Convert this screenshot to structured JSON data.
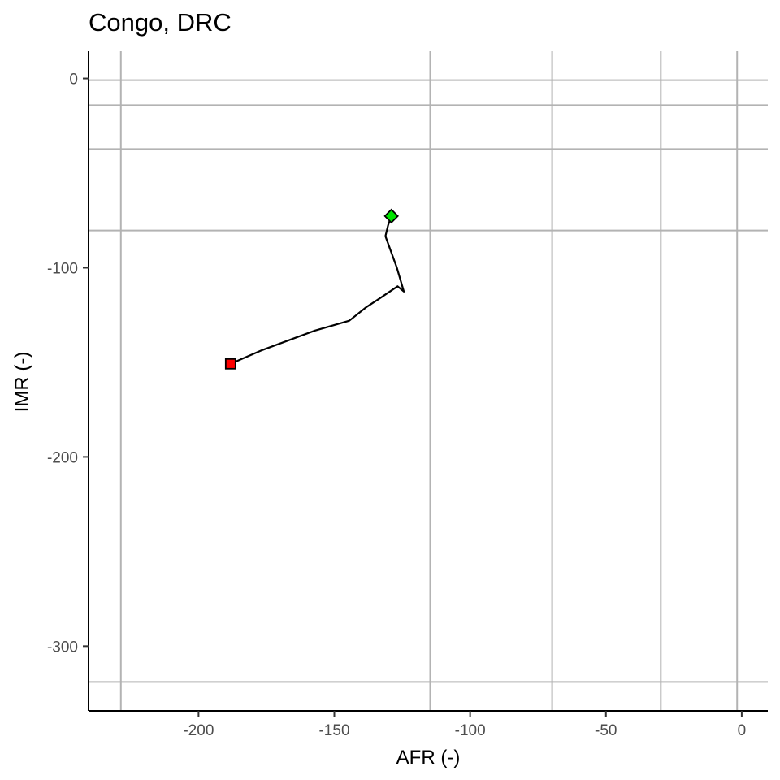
{
  "chart_data": {
    "type": "line",
    "title": "Congo, DRC",
    "xlabel": "AFR (-)",
    "ylabel": "IMR (-)",
    "xlim": [
      -240.5,
      9.6
    ],
    "ylim": [
      -334.2,
      14.4
    ],
    "x_ticks": [
      -200,
      -150,
      -100,
      -50,
      0
    ],
    "x_tick_labels": [
      "-200",
      "-150",
      "-100",
      "-50",
      "0"
    ],
    "y_ticks": [
      0,
      -100,
      -200,
      -300
    ],
    "y_tick_labels": [
      "0",
      "-100",
      "-200",
      "-300"
    ],
    "grid_x": [
      -228.6,
      -114.7,
      -69.8,
      -29.8,
      -1.7
    ],
    "grid_y": [
      -0.9,
      -14.1,
      -37.3,
      -80.3,
      -318.9
    ],
    "series": [
      {
        "color": "#000000",
        "x": [
          -188.2,
          -176.5,
          -157.1,
          -144.5,
          -138.2,
          -133.4,
          -126.7,
          -124.4,
          -127.0,
          -131.2,
          -130.2,
          -129.0
        ],
        "y": [
          -150.8,
          -143.5,
          -133.2,
          -128.0,
          -120.8,
          -116.3,
          -109.8,
          -112.6,
          -99.9,
          -83.3,
          -77.5,
          -72.7
        ]
      }
    ],
    "markers": [
      {
        "shape": "square",
        "color": "#ff0000",
        "x": -188.2,
        "y": -150.8
      },
      {
        "shape": "diamond",
        "color": "#00e600",
        "x": -129.0,
        "y": -72.7
      }
    ],
    "grid": true
  }
}
